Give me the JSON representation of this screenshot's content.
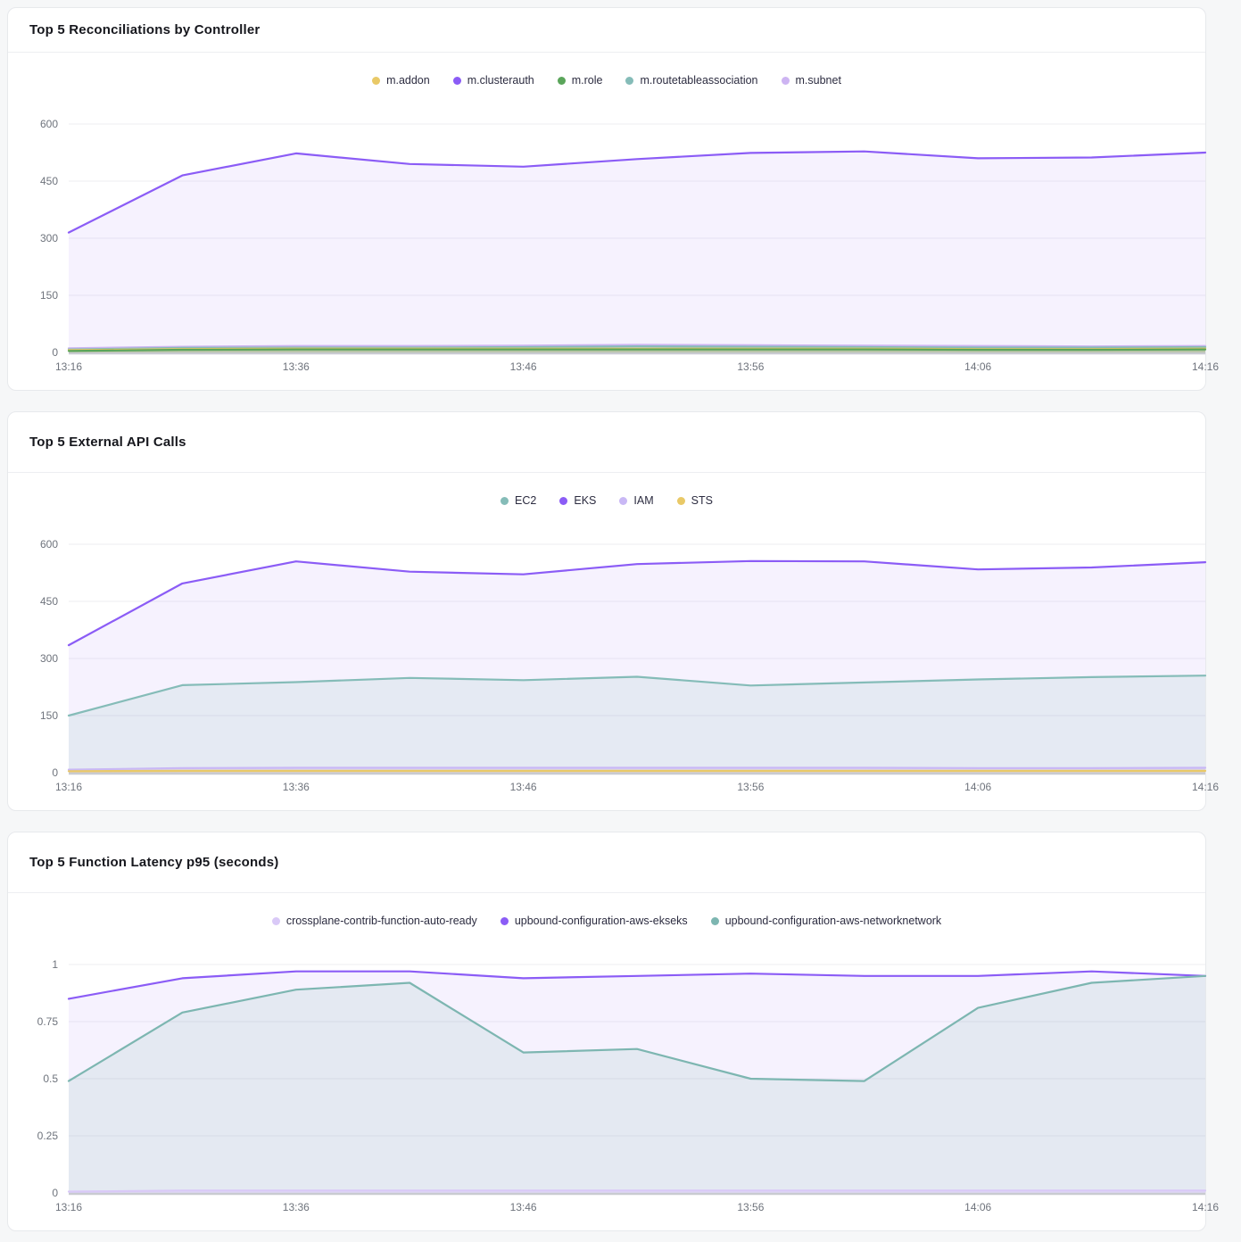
{
  "chart_data": [
    {
      "id": "reconciliations-by-controller",
      "type": "area",
      "title": "Top 5 Reconciliations by Controller",
      "x_labels": [
        "13:16",
        "13:36",
        "13:46",
        "13:56",
        "14:06",
        "14:16"
      ],
      "y_ticks": [
        0,
        150,
        300,
        450,
        600
      ],
      "ylim": [
        0,
        600
      ],
      "grid": "horizontal",
      "legend_position": "top-center",
      "axis_color": "#c9cbd1",
      "grid_color": "#ededf1",
      "draw_order": [
        1,
        4,
        3,
        0,
        2
      ],
      "series": [
        {
          "name": "m.addon",
          "color": "#e9c967",
          "fill": "rgba(233,201,103,0.30)",
          "values": [
            6,
            9,
            10,
            10,
            10,
            10,
            10,
            10,
            9,
            9,
            10
          ]
        },
        {
          "name": "m.clusterauth",
          "color": "#8b5cf6",
          "fill": "rgba(139,92,246,0.08)",
          "values": [
            315,
            465,
            523,
            495,
            488,
            508,
            524,
            528,
            510,
            512,
            525
          ]
        },
        {
          "name": "m.role",
          "color": "#5aa55a",
          "fill": "rgba(90,165,90,0.22)",
          "values": [
            4,
            7,
            8,
            8,
            8,
            8,
            8,
            8,
            7,
            7,
            8
          ]
        },
        {
          "name": "m.routetableassociation",
          "color": "#85bcb8",
          "fill": "rgba(133,188,184,0.28)",
          "values": [
            8,
            12,
            13,
            13,
            14,
            16,
            15,
            14,
            13,
            13,
            14
          ]
        },
        {
          "name": "m.subnet",
          "color": "#cdb4f2",
          "fill": "rgba(205,180,242,0.35)",
          "values": [
            11,
            15,
            17,
            17,
            18,
            20,
            19,
            18,
            17,
            16,
            17
          ]
        }
      ]
    },
    {
      "id": "external-api-calls",
      "type": "area",
      "title": "Top 5 External API Calls",
      "x_labels": [
        "13:16",
        "13:36",
        "13:46",
        "13:56",
        "14:06",
        "14:16"
      ],
      "y_ticks": [
        0,
        150,
        300,
        450,
        600
      ],
      "ylim": [
        0,
        600
      ],
      "grid": "horizontal",
      "legend_position": "top-center",
      "axis_color": "#c9cbd1",
      "grid_color": "#ededf1",
      "draw_order": [
        1,
        0,
        2,
        3
      ],
      "series": [
        {
          "name": "EC2",
          "color": "#85bcb8",
          "fill": "rgba(133,188,184,0.15)",
          "values": [
            150,
            230,
            238,
            249,
            243,
            252,
            229,
            237,
            245,
            251,
            255
          ]
        },
        {
          "name": "EKS",
          "color": "#8b5cf6",
          "fill": "rgba(139,92,246,0.08)",
          "values": [
            335,
            497,
            555,
            528,
            521,
            548,
            556,
            555,
            534,
            539,
            553
          ]
        },
        {
          "name": "IAM",
          "color": "#c9b8f5",
          "fill": "rgba(201,184,245,0.40)",
          "values": [
            8,
            12,
            13,
            13,
            13,
            13,
            13,
            13,
            12,
            12,
            13
          ]
        },
        {
          "name": "STS",
          "color": "#e9c967",
          "fill": "rgba(233,201,103,0.35)",
          "values": [
            4,
            5,
            5,
            5,
            5,
            5,
            5,
            5,
            5,
            5,
            5
          ]
        }
      ]
    },
    {
      "id": "function-latency-p95",
      "type": "area",
      "title": "Top 5 Function Latency p95 (seconds)",
      "x_labels": [
        "13:16",
        "13:36",
        "13:46",
        "13:56",
        "14:06",
        "14:16"
      ],
      "y_ticks": [
        0,
        0.25,
        0.5,
        0.75,
        1
      ],
      "ylim": [
        0,
        1
      ],
      "grid": "horizontal",
      "legend_position": "top-center",
      "axis_color": "#c9cbd1",
      "grid_color": "#ededf1",
      "draw_order": [
        1,
        2,
        0
      ],
      "series": [
        {
          "name": "crossplane-contrib-function-auto-ready",
          "color": "#d9c9f7",
          "fill": "rgba(217,201,247,0.45)",
          "values": [
            0.006,
            0.01,
            0.01,
            0.01,
            0.01,
            0.01,
            0.01,
            0.01,
            0.01,
            0.01,
            0.01
          ]
        },
        {
          "name": "upbound-configuration-aws-ekseks",
          "color": "#8b5cf6",
          "fill": "rgba(139,92,246,0.08)",
          "values": [
            0.85,
            0.94,
            0.97,
            0.97,
            0.94,
            0.95,
            0.96,
            0.95,
            0.95,
            0.97,
            0.95
          ]
        },
        {
          "name": "upbound-configuration-aws-networknetwork",
          "color": "#7db6b1",
          "fill": "rgba(125,182,177,0.15)",
          "values": [
            0.49,
            0.79,
            0.89,
            0.92,
            0.615,
            0.63,
            0.5,
            0.49,
            0.81,
            0.92,
            0.95
          ]
        }
      ]
    }
  ]
}
